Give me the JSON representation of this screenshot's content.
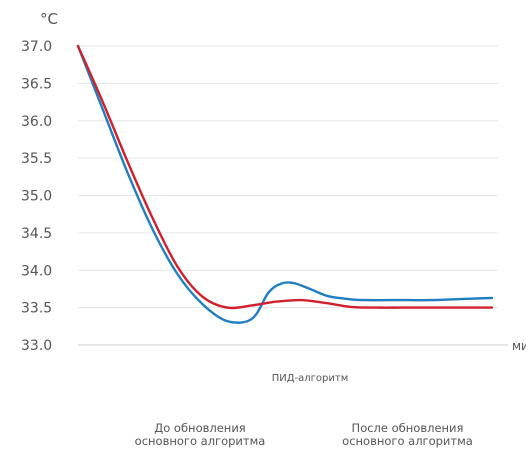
{
  "chart_data": {
    "type": "line",
    "ylabel": "°C",
    "xlabel": "мин",
    "ylim": [
      33.0,
      37.0
    ],
    "xlim": [
      0,
      100
    ],
    "yticks": [
      "37.0",
      "36.5",
      "36.0",
      "35.5",
      "35.0",
      "34.5",
      "34.0",
      "33.5",
      "33.0"
    ],
    "grid": true,
    "annotation": "ПИД-алгоритм",
    "series": [
      {
        "color": "#1f7ec2",
        "x": [
          0,
          6,
          12,
          18,
          24,
          30,
          36,
          42,
          46,
          49,
          52,
          56,
          60,
          63,
          66,
          70,
          75,
          80,
          85,
          90,
          95,
          100
        ],
        "y": [
          37.0,
          36.15,
          35.3,
          34.55,
          33.95,
          33.55,
          33.32,
          33.35,
          33.7,
          33.82,
          33.83,
          33.75,
          33.66,
          33.63,
          33.61,
          33.6,
          33.6,
          33.6,
          33.6,
          33.61,
          33.62,
          33.63
        ]
      },
      {
        "color": "#d0202e",
        "x": [
          0,
          6,
          12,
          18,
          24,
          30,
          36,
          42,
          48,
          54,
          60,
          66,
          72,
          78,
          84,
          90,
          96,
          100
        ],
        "y": [
          37.0,
          36.25,
          35.45,
          34.7,
          34.05,
          33.65,
          33.5,
          33.53,
          33.58,
          33.6,
          33.56,
          33.51,
          33.5,
          33.5,
          33.5,
          33.5,
          33.5,
          33.5
        ]
      }
    ]
  },
  "captions": {
    "before": [
      "До обновления",
      "основного алгоритма"
    ],
    "after": [
      "После обновления",
      "основного алгоритма"
    ]
  }
}
